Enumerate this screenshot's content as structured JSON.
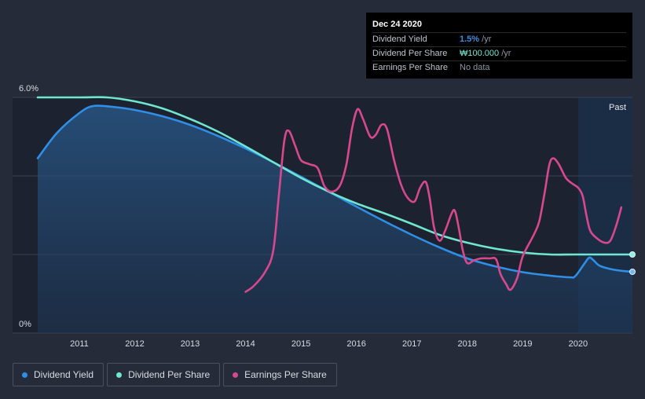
{
  "tooltip": {
    "date": "Dec 24 2020",
    "rows": [
      {
        "label": "Dividend Yield",
        "value": "1.5%",
        "unit": " /yr",
        "color": "#3a8fe0"
      },
      {
        "label": "Dividend Per Share",
        "value": "₩100.000",
        "unit": " /yr",
        "color": "#6fe6cf"
      },
      {
        "label": "Earnings Per Share",
        "value": "No data",
        "unit": "",
        "color": "#8f96a3"
      }
    ]
  },
  "legend": [
    {
      "label": "Dividend Yield",
      "color": "#2f8fe6"
    },
    {
      "label": "Dividend Per Share",
      "color": "#6fe6cf"
    },
    {
      "label": "Earnings Per Share",
      "color": "#d8488f"
    }
  ],
  "chart_data": {
    "type": "line",
    "title": "",
    "xlabel": "",
    "ylabel": "",
    "xlim": [
      2010.25,
      2020.98
    ],
    "ylim": [
      0,
      6.0
    ],
    "y_tick_labels": [
      {
        "value": 0,
        "label": "0%"
      },
      {
        "value": 6.0,
        "label": "6.0%"
      }
    ],
    "y_grid": [
      2,
      4,
      6
    ],
    "x_ticks": [
      2011,
      2012,
      2013,
      2014,
      2015,
      2016,
      2017,
      2018,
      2019,
      2020
    ],
    "past_label": "Past",
    "past_start": 2020.0,
    "series": [
      {
        "name": "Dividend Yield",
        "color": "#2f8fe6",
        "fill": true,
        "points": [
          [
            2010.25,
            4.45
          ],
          [
            2010.6,
            5.1
          ],
          [
            2011.0,
            5.6
          ],
          [
            2011.25,
            5.78
          ],
          [
            2011.6,
            5.76
          ],
          [
            2012.0,
            5.68
          ],
          [
            2012.5,
            5.52
          ],
          [
            2013.0,
            5.3
          ],
          [
            2013.5,
            5.02
          ],
          [
            2014.0,
            4.7
          ],
          [
            2014.5,
            4.35
          ],
          [
            2015.0,
            3.98
          ],
          [
            2015.5,
            3.6
          ],
          [
            2016.0,
            3.22
          ],
          [
            2016.5,
            2.85
          ],
          [
            2017.0,
            2.5
          ],
          [
            2017.5,
            2.18
          ],
          [
            2018.0,
            1.9
          ],
          [
            2018.5,
            1.7
          ],
          [
            2019.0,
            1.55
          ],
          [
            2019.5,
            1.46
          ],
          [
            2019.85,
            1.42
          ],
          [
            2019.95,
            1.45
          ],
          [
            2020.12,
            1.78
          ],
          [
            2020.2,
            1.92
          ],
          [
            2020.28,
            1.85
          ],
          [
            2020.38,
            1.72
          ],
          [
            2020.55,
            1.64
          ],
          [
            2020.75,
            1.59
          ],
          [
            2020.98,
            1.56
          ]
        ]
      },
      {
        "name": "Dividend Per Share",
        "color": "#6fe6cf",
        "fill": false,
        "points": [
          [
            2010.25,
            6.0
          ],
          [
            2011.0,
            6.0
          ],
          [
            2011.5,
            6.0
          ],
          [
            2012.0,
            5.9
          ],
          [
            2012.5,
            5.72
          ],
          [
            2013.0,
            5.45
          ],
          [
            2013.5,
            5.13
          ],
          [
            2014.0,
            4.75
          ],
          [
            2014.5,
            4.35
          ],
          [
            2015.0,
            3.95
          ],
          [
            2015.5,
            3.6
          ],
          [
            2016.0,
            3.3
          ],
          [
            2016.5,
            3.05
          ],
          [
            2017.0,
            2.78
          ],
          [
            2017.5,
            2.5
          ],
          [
            2018.0,
            2.3
          ],
          [
            2018.5,
            2.15
          ],
          [
            2019.0,
            2.05
          ],
          [
            2019.5,
            2.0
          ],
          [
            2020.0,
            2.0
          ],
          [
            2020.98,
            2.0
          ]
        ]
      },
      {
        "name": "Earnings Per Share",
        "color": "#d8488f",
        "fill": false,
        "points": [
          [
            2014.0,
            1.05
          ],
          [
            2014.15,
            1.2
          ],
          [
            2014.35,
            1.55
          ],
          [
            2014.5,
            2.1
          ],
          [
            2014.6,
            3.5
          ],
          [
            2014.7,
            4.9
          ],
          [
            2014.78,
            5.15
          ],
          [
            2014.9,
            4.75
          ],
          [
            2015.0,
            4.4
          ],
          [
            2015.15,
            4.3
          ],
          [
            2015.3,
            4.2
          ],
          [
            2015.42,
            3.75
          ],
          [
            2015.55,
            3.6
          ],
          [
            2015.7,
            3.75
          ],
          [
            2015.82,
            4.3
          ],
          [
            2015.92,
            5.2
          ],
          [
            2016.02,
            5.7
          ],
          [
            2016.12,
            5.45
          ],
          [
            2016.25,
            5.0
          ],
          [
            2016.35,
            5.05
          ],
          [
            2016.45,
            5.3
          ],
          [
            2016.55,
            5.2
          ],
          [
            2016.68,
            4.4
          ],
          [
            2016.8,
            3.8
          ],
          [
            2016.92,
            3.45
          ],
          [
            2017.05,
            3.35
          ],
          [
            2017.15,
            3.7
          ],
          [
            2017.25,
            3.85
          ],
          [
            2017.32,
            3.45
          ],
          [
            2017.4,
            2.7
          ],
          [
            2017.5,
            2.35
          ],
          [
            2017.6,
            2.6
          ],
          [
            2017.72,
            3.05
          ],
          [
            2017.78,
            3.1
          ],
          [
            2017.85,
            2.65
          ],
          [
            2017.92,
            2.1
          ],
          [
            2018.0,
            1.78
          ],
          [
            2018.12,
            1.85
          ],
          [
            2018.25,
            1.9
          ],
          [
            2018.4,
            1.9
          ],
          [
            2018.52,
            1.88
          ],
          [
            2018.6,
            1.5
          ],
          [
            2018.7,
            1.25
          ],
          [
            2018.78,
            1.1
          ],
          [
            2018.9,
            1.4
          ],
          [
            2019.0,
            1.95
          ],
          [
            2019.2,
            2.5
          ],
          [
            2019.3,
            2.85
          ],
          [
            2019.4,
            3.6
          ],
          [
            2019.48,
            4.28
          ],
          [
            2019.55,
            4.45
          ],
          [
            2019.65,
            4.3
          ],
          [
            2019.78,
            3.95
          ],
          [
            2019.9,
            3.8
          ],
          [
            2020.0,
            3.7
          ],
          [
            2020.08,
            3.5
          ],
          [
            2020.15,
            3.0
          ],
          [
            2020.22,
            2.6
          ],
          [
            2020.35,
            2.4
          ],
          [
            2020.48,
            2.3
          ],
          [
            2020.58,
            2.35
          ],
          [
            2020.68,
            2.7
          ],
          [
            2020.78,
            3.2
          ]
        ]
      }
    ]
  }
}
